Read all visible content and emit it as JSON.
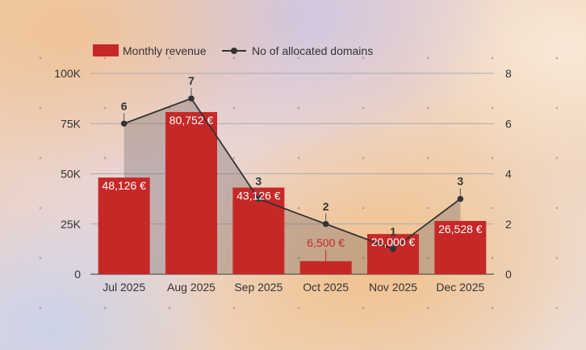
{
  "chart_data": {
    "type": "bar",
    "categories": [
      "Jul 2025",
      "Aug 2025",
      "Sep 2025",
      "Oct 2025",
      "Nov 2025",
      "Dec 2025"
    ],
    "series": [
      {
        "name": "Monthly revenue",
        "kind": "bar",
        "axis": "left",
        "color": "#c62828",
        "values": [
          48126,
          80752,
          43126,
          6500,
          20000,
          26528
        ],
        "labels": [
          "48,126 €",
          "80,752 €",
          "43,126 €",
          "6,500 €",
          "20,000 €",
          "26,528 €"
        ]
      },
      {
        "name": "No of allocated domains",
        "kind": "line",
        "axis": "right",
        "color": "#333333",
        "values": [
          6,
          7,
          3,
          2,
          1,
          3
        ],
        "labels": [
          "6",
          "7",
          "3",
          "2",
          "1",
          "3"
        ]
      }
    ],
    "y_left": {
      "min": 0,
      "max": 100000,
      "ticks": [
        0,
        25000,
        50000,
        75000,
        100000
      ],
      "tick_labels": [
        "0",
        "25K",
        "50K",
        "75K",
        "100K"
      ]
    },
    "y_right": {
      "min": 0,
      "max": 8,
      "ticks": [
        0,
        2,
        4,
        6,
        8
      ],
      "tick_labels": [
        "0",
        "2",
        "4",
        "6",
        "8"
      ]
    },
    "legend_position": "top-left",
    "grid": true
  }
}
